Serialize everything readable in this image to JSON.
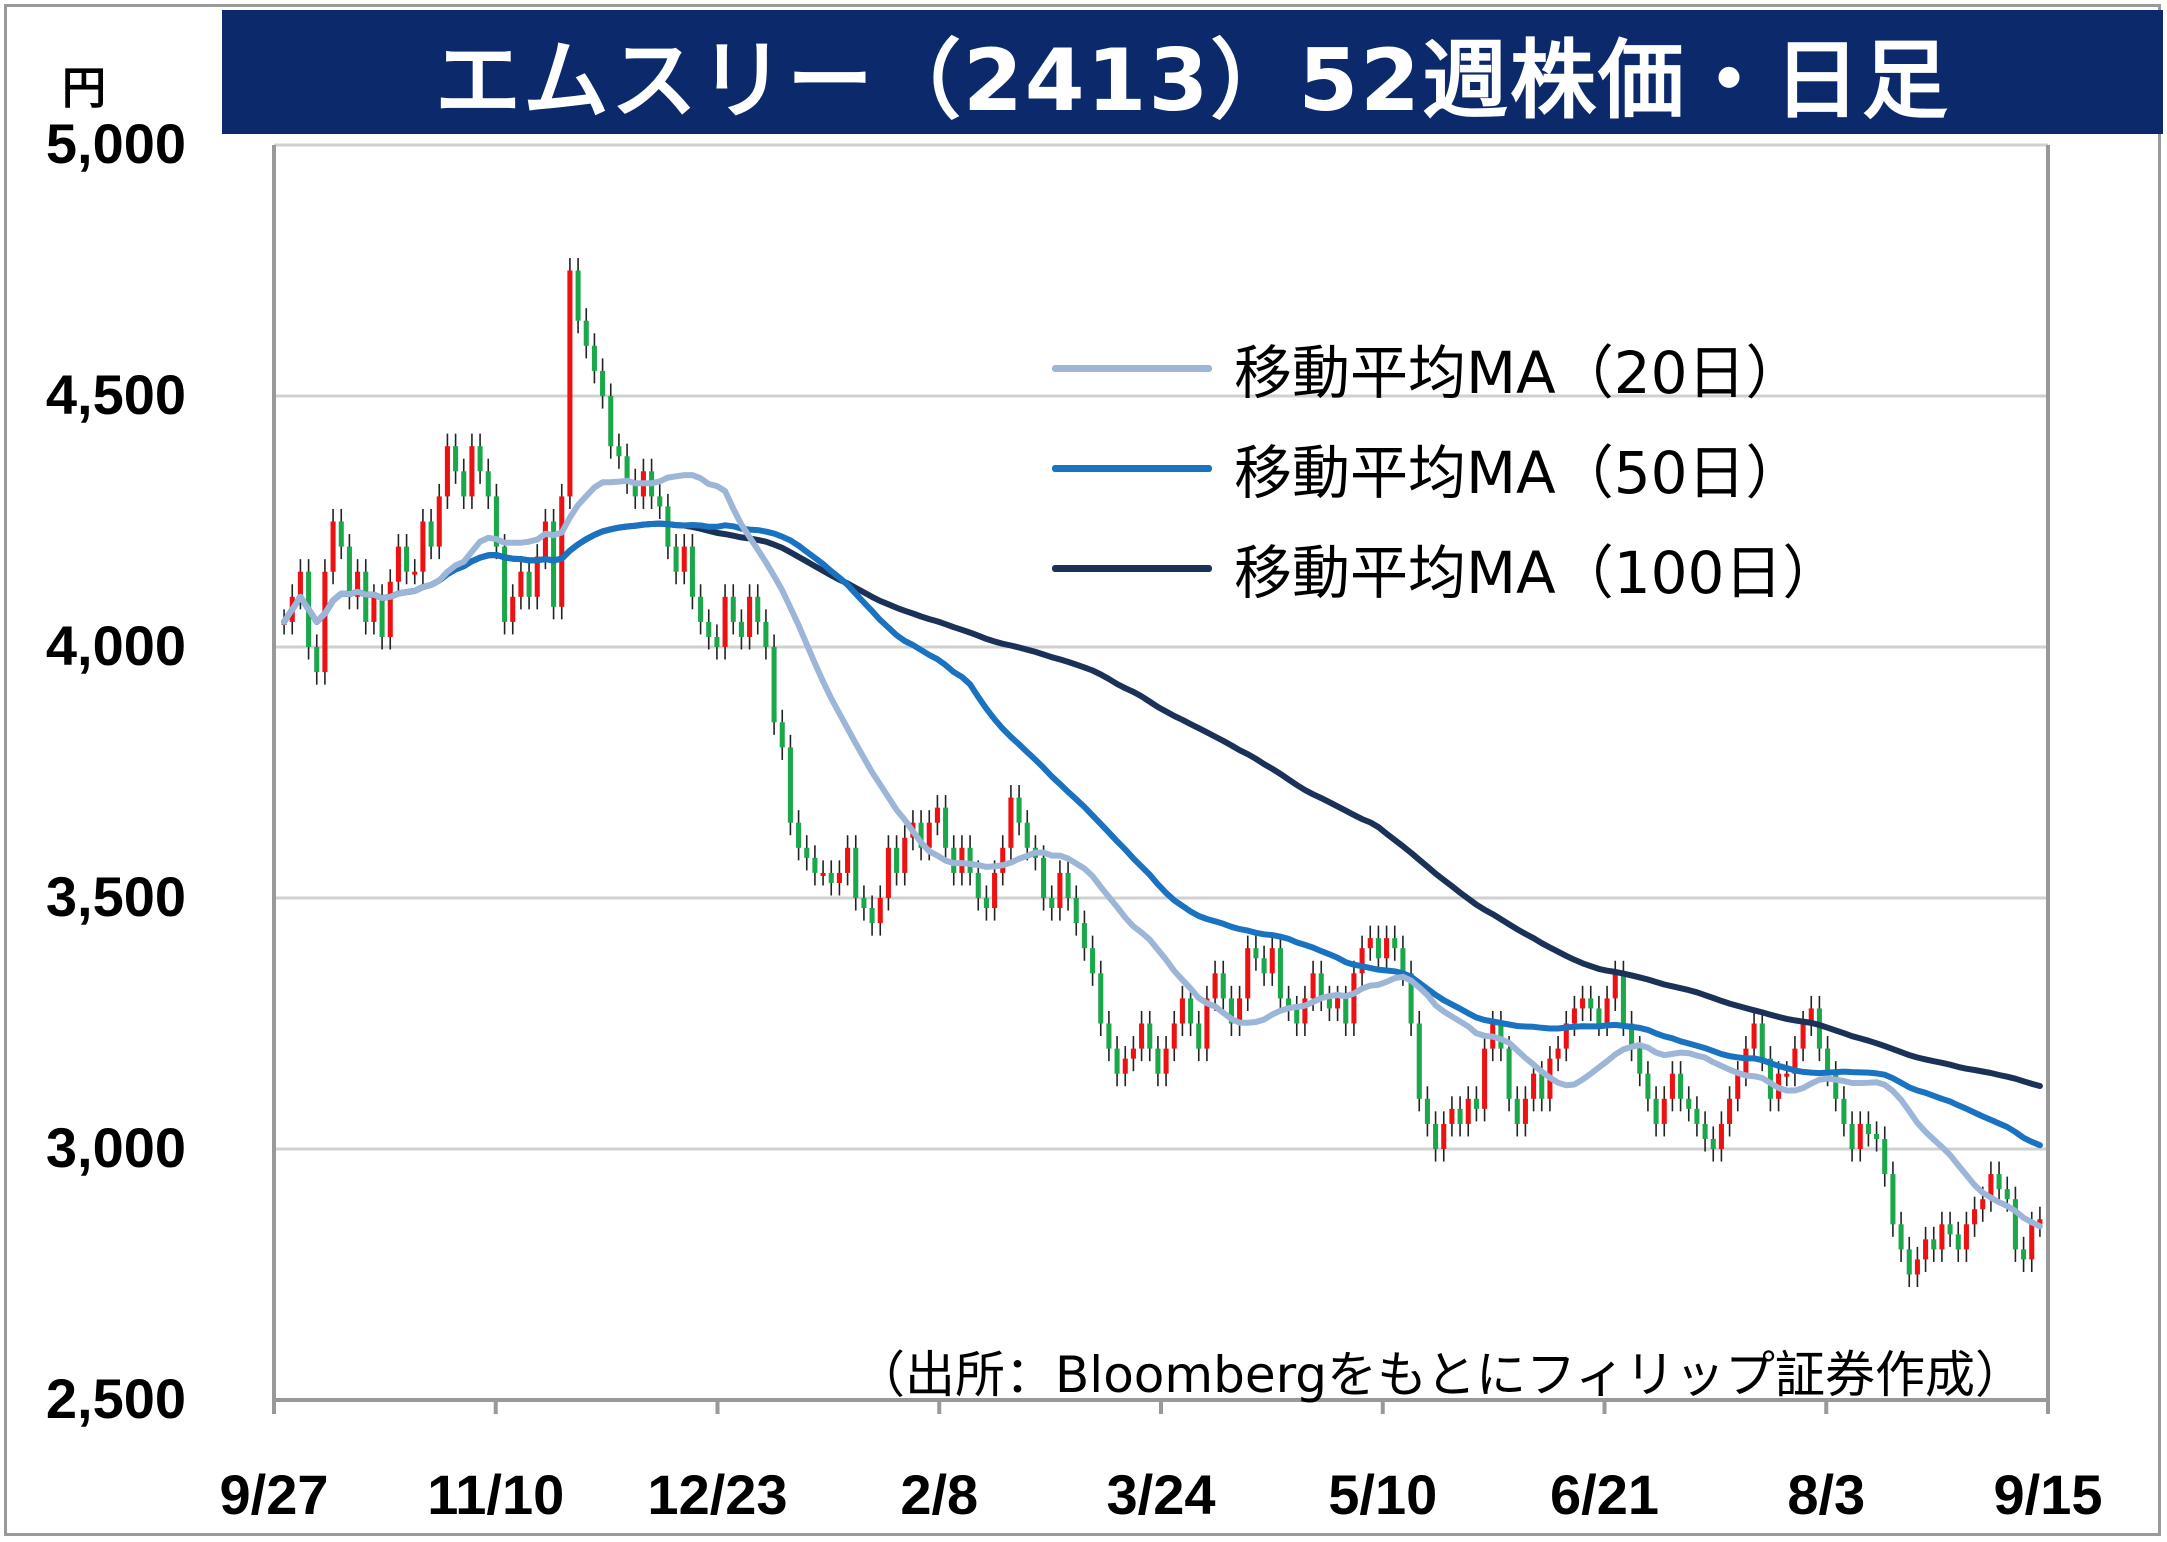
{
  "title": "エムスリー（2413）52週株価・日足",
  "y_unit": "円",
  "source_note": "（出所：Bloombergをもとにフィリップ証券作成）",
  "colors": {
    "title_bg": "#0c2a6b",
    "up_candle": "#ee1111",
    "down_candle": "#1aa84a",
    "ma20": "#9db6d8",
    "ma50": "#1a73c0",
    "ma100": "#1b3158",
    "grid": "#d0d0d0",
    "axis": "#999999"
  },
  "chart_data": {
    "type": "candlestick",
    "title": "エムスリー（2413）52週株価・日足",
    "ylabel": "円",
    "ylim": [
      2500,
      5000
    ],
    "yticks": [
      "5,000",
      "4,500",
      "4,000",
      "3,500",
      "3,000",
      "2,500"
    ],
    "ytick_values": [
      5000,
      4500,
      4000,
      3500,
      3000,
      2500
    ],
    "xticks": [
      "9/27",
      "11/10",
      "12/23",
      "2/8",
      "3/24",
      "5/10",
      "6/21",
      "8/3",
      "9/15"
    ],
    "grid": "horizontal",
    "legend_position": "top-right",
    "legend": [
      "移動平均MA（20日）",
      "移動平均MA（50日）",
      "移動平均MA（100日）"
    ],
    "close": [
      4050,
      4100,
      4150,
      4000,
      3950,
      4150,
      4250,
      4200,
      4100,
      4150,
      4050,
      4100,
      4020,
      4130,
      4200,
      4150,
      4150,
      4250,
      4200,
      4300,
      4400,
      4350,
      4300,
      4400,
      4350,
      4300,
      4200,
      4050,
      4100,
      4150,
      4100,
      4180,
      4250,
      4080,
      4300,
      4750,
      4650,
      4600,
      4550,
      4500,
      4400,
      4380,
      4330,
      4300,
      4350,
      4300,
      4280,
      4200,
      4150,
      4200,
      4100,
      4050,
      4020,
      4000,
      4100,
      4050,
      4020,
      4100,
      4050,
      4000,
      3850,
      3800,
      3650,
      3600,
      3580,
      3550,
      3550,
      3530,
      3550,
      3600,
      3500,
      3480,
      3450,
      3500,
      3600,
      3550,
      3620,
      3650,
      3600,
      3650,
      3680,
      3600,
      3550,
      3600,
      3550,
      3500,
      3480,
      3550,
      3600,
      3700,
      3650,
      3600,
      3580,
      3500,
      3480,
      3550,
      3500,
      3450,
      3400,
      3350,
      3250,
      3200,
      3150,
      3180,
      3200,
      3250,
      3200,
      3150,
      3200,
      3250,
      3300,
      3250,
      3200,
      3300,
      3350,
      3300,
      3250,
      3300,
      3400,
      3380,
      3350,
      3400,
      3300,
      3280,
      3250,
      3300,
      3350,
      3300,
      3280,
      3300,
      3250,
      3350,
      3400,
      3420,
      3380,
      3420,
      3400,
      3350,
      3250,
      3100,
      3050,
      3000,
      3050,
      3080,
      3050,
      3100,
      3080,
      3200,
      3250,
      3200,
      3100,
      3050,
      3100,
      3150,
      3100,
      3180,
      3200,
      3250,
      3280,
      3300,
      3280,
      3250,
      3300,
      3350,
      3250,
      3200,
      3150,
      3100,
      3050,
      3100,
      3150,
      3100,
      3080,
      3050,
      3020,
      3000,
      3050,
      3100,
      3150,
      3200,
      3250,
      3180,
      3100,
      3150,
      3150,
      3200,
      3250,
      3280,
      3200,
      3150,
      3100,
      3050,
      3000,
      3050,
      3030,
      3020,
      2950,
      2850,
      2800,
      2750,
      2780,
      2820,
      2800,
      2850,
      2830,
      2800,
      2850,
      2880,
      2900,
      2950,
      2920,
      2900,
      2800,
      2780,
      2850,
      2860
    ]
  }
}
